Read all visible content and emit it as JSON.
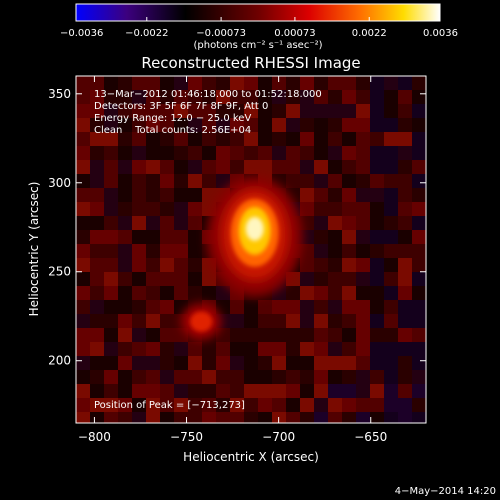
{
  "chart_data": {
    "type": "heatmap",
    "title": "Reconstructed RHESSI Image",
    "xlabel": "Heliocentric X (arcsec)",
    "ylabel": "Heliocentric Y (arcsec)",
    "xlim": [
      -810,
      -620
    ],
    "ylim": [
      165,
      360
    ],
    "x_ticks": [
      -800,
      -750,
      -700,
      -650
    ],
    "y_ticks": [
      200,
      250,
      300,
      350
    ],
    "colorbar": {
      "min": -0.0036,
      "max": 0.0036,
      "ticks": [
        -0.0036,
        -0.0022,
        -0.00073,
        0.00073,
        0.0022,
        0.0036
      ],
      "tick_labels": [
        "−0.0036",
        "−0.0022",
        "−0.00073",
        "0.00073",
        "0.0022",
        "0.0036"
      ],
      "units": "(photons cm⁻² s⁻¹ asec⁻²)",
      "colors": [
        "#0000ff",
        "#3c007e",
        "#000000",
        "#6e0000",
        "#dc0000",
        "#ff6e00",
        "#ffdc00",
        "#ffffff"
      ]
    },
    "sources": [
      {
        "x": -713,
        "y": 273,
        "intensity": 1.0
      },
      {
        "x": -742,
        "y": 222,
        "intensity": 0.45
      }
    ],
    "annotations": {
      "line1": "13−Mar−2012 01:46:18.000 to 01:52:18.000",
      "line2": "Detectors: 3F 5F 6F 7F 8F 9F, Att 0",
      "line3": "Energy Range: 12.0 − 25.0 keV",
      "line4": "Clean    Total counts: 2.56E+04",
      "peak": "Position of Peak = [−713,273]"
    },
    "footer_date": "4−May−2014 14:20",
    "grid": false
  }
}
